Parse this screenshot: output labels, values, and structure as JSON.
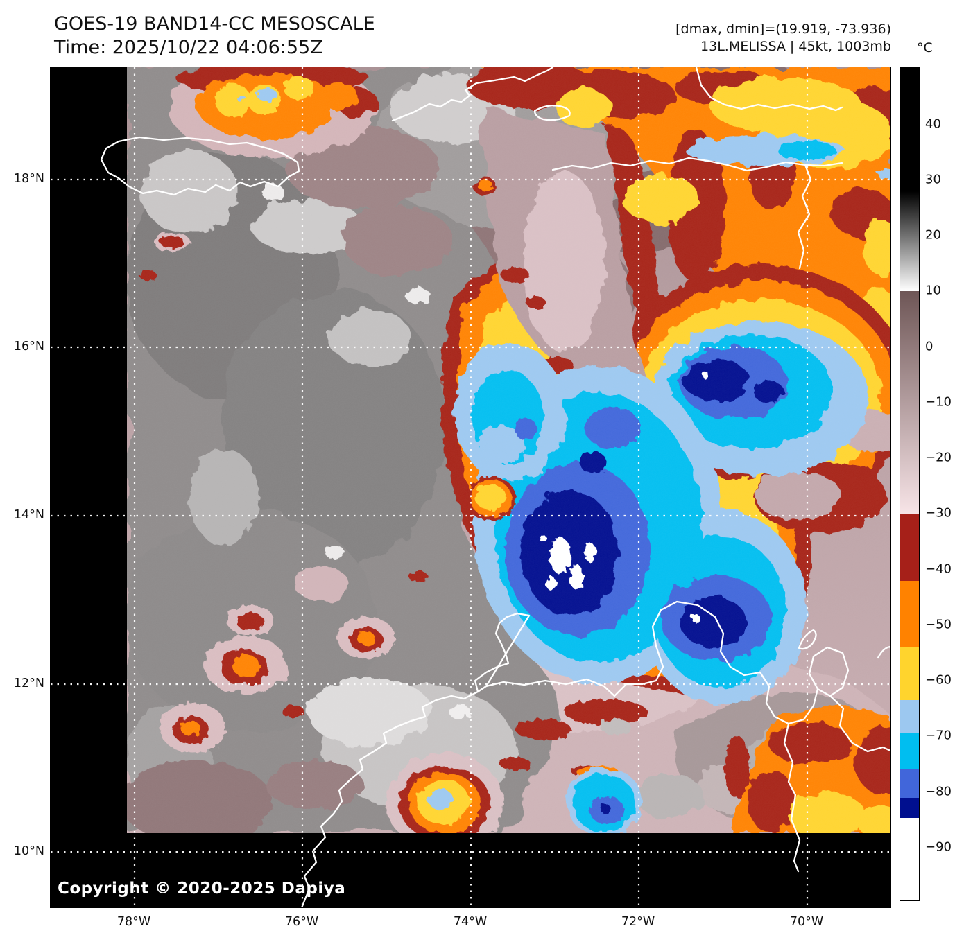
{
  "header": {
    "title_line1": "GOES-19 BAND14-CC MESOSCALE",
    "title_line2": "Time: 2025/10/22 04:06:55Z",
    "annotation_line1": "[dmax, dmin]=(19.919, -73.936)",
    "annotation_line2": "13L.MELISSA | 45kt, 1003mb",
    "storm": {
      "designation": "13L",
      "name": "MELISSA",
      "intensity": "45kt",
      "pressure": "1003mb",
      "dmax": 19.919,
      "dmin": -73.936
    }
  },
  "map": {
    "copyright": "Copyright © 2020-2025 Dapiya",
    "lat_ticks": [
      "18°N",
      "16°N",
      "14°N",
      "12°N",
      "10°N"
    ],
    "lon_ticks": [
      "78°W",
      "76°W",
      "74°W",
      "72°W",
      "70°W"
    ]
  },
  "colorbar": {
    "unit_label": "°C",
    "scale_top_value": 50.3,
    "scale_bottom_value": -99.5,
    "tick_values": [
      40,
      30,
      20,
      10,
      0,
      -10,
      -20,
      -30,
      -40,
      -50,
      -60,
      -70,
      -80,
      -90
    ],
    "tick_labels": [
      "40",
      "30",
      "20",
      "10",
      "0",
      "−10",
      "−20",
      "−30",
      "−40",
      "−50",
      "−60",
      "−70",
      "−80",
      "−90"
    ],
    "segments": [
      {
        "from": 50.3,
        "to": 28,
        "color": "#000000"
      },
      {
        "from": 28,
        "to": 10,
        "color": "#000000",
        "color_to": "#ffffff"
      },
      {
        "from": 10,
        "to": -30,
        "color": "#6e5656",
        "color_to": "#f7e4e7"
      },
      {
        "from": -30,
        "to": -42,
        "color": "#a62019"
      },
      {
        "from": -42,
        "to": -54,
        "color": "#ff8200"
      },
      {
        "from": -54,
        "to": -63.5,
        "color": "#ffd42d"
      },
      {
        "from": -63.5,
        "to": -69.5,
        "color": "#9cc8f0"
      },
      {
        "from": -69.5,
        "to": -76,
        "color": "#00bef0"
      },
      {
        "from": -76,
        "to": -81,
        "color": "#4166da"
      },
      {
        "from": -81,
        "to": -84.7,
        "color": "#000f8f"
      },
      {
        "from": -84.7,
        "to": -99.5,
        "color": "#ffffff"
      }
    ]
  }
}
